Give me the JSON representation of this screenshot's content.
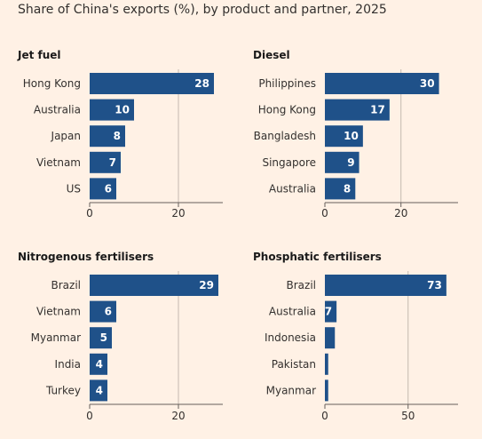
{
  "title": "Share of China's exports (%), by product and partner, 2025",
  "colors": {
    "bar": "#1f5189",
    "gridline": "#c4b9ae",
    "axis": "#66605c",
    "label_inside": "#ffffff"
  },
  "chart_data": [
    {
      "type": "bar",
      "orientation": "horizontal",
      "title": "Jet fuel",
      "categories": [
        "Hong Kong",
        "Australia",
        "Japan",
        "Vietnam",
        "US"
      ],
      "values": [
        28,
        10,
        8,
        7,
        6
      ],
      "xticks": [
        0,
        20
      ],
      "xlim": [
        0,
        30
      ],
      "grid": true
    },
    {
      "type": "bar",
      "orientation": "horizontal",
      "title": "Diesel",
      "categories": [
        "Philippines",
        "Hong Kong",
        "Bangladesh",
        "Singapore",
        "Australia"
      ],
      "values": [
        30,
        17,
        10,
        9,
        8
      ],
      "xticks": [
        0,
        20
      ],
      "xlim": [
        0,
        35
      ],
      "grid": true
    },
    {
      "type": "bar",
      "orientation": "horizontal",
      "title": "Nitrogenous fertilisers",
      "categories": [
        "Brazil",
        "Vietnam",
        "Myanmar",
        "India",
        "Turkey"
      ],
      "values": [
        29,
        6,
        5,
        4,
        4
      ],
      "xticks": [
        0,
        20
      ],
      "xlim": [
        0,
        30
      ],
      "grid": true
    },
    {
      "type": "bar",
      "orientation": "horizontal",
      "title": "Phosphatic fertilisers",
      "categories": [
        "Brazil",
        "Australia",
        "Indonesia",
        "Pakistan",
        "Myanmar"
      ],
      "values": [
        73,
        7,
        6,
        2,
        2
      ],
      "value_labels": [
        "73",
        "7",
        "",
        "",
        ""
      ],
      "xticks": [
        0,
        50
      ],
      "xlim": [
        0,
        80
      ],
      "grid": true
    }
  ]
}
